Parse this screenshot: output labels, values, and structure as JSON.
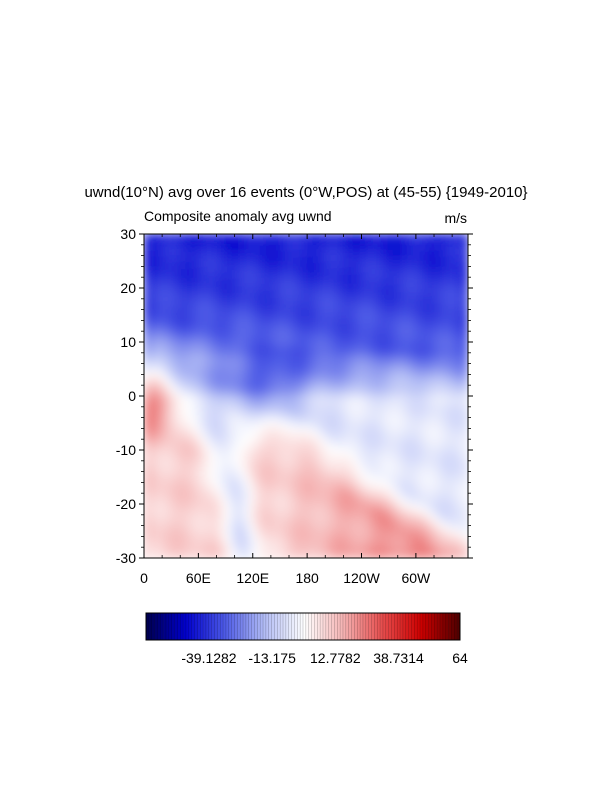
{
  "chart_data": {
    "type": "heatmap",
    "title": "uwnd(10°N) avg over 16 events (0°W,POS) at (45-55) {1949-2010}",
    "subtitle_left": "Composite anomaly avg uwnd",
    "subtitle_right": "m/s",
    "x_ticks": [
      "0",
      "60E",
      "120E",
      "180",
      "120W",
      "60W"
    ],
    "x_tick_values": [
      0,
      60,
      120,
      180,
      240,
      300
    ],
    "y_ticks": [
      "30",
      "20",
      "10",
      "0",
      "-10",
      "-20",
      "-30"
    ],
    "y_tick_values": [
      30,
      20,
      10,
      0,
      -10,
      -20,
      -30
    ],
    "xlim": [
      0,
      357.5
    ],
    "ylim": [
      -30,
      30
    ],
    "colormap": [
      "#00004d",
      "#0000cc",
      "#4d5ae6",
      "#b3bdf5",
      "#ffffff",
      "#f5b3b3",
      "#e64d4d",
      "#cc0000",
      "#4d0000"
    ],
    "colorbar": {
      "range": [
        -65,
        64
      ],
      "labels": [
        "-39.1282",
        "-13.175",
        "12.7782",
        "38.7314",
        "64"
      ],
      "label_values": [
        -39.1282,
        -13.175,
        12.7782,
        38.7314,
        64
      ]
    }
  }
}
